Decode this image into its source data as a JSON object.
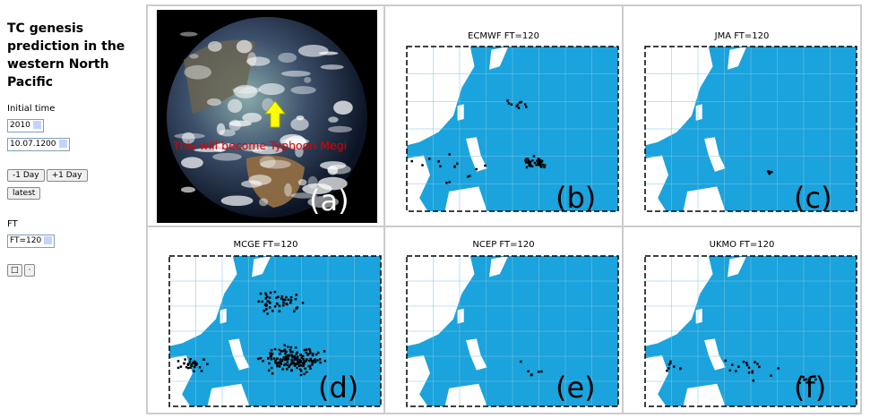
{
  "sidebar": {
    "title": "TC genesis prediction in the western North Pacific",
    "initial_time_label": "Initial time",
    "year": "2010",
    "datetime": "10.07.1200",
    "buttons": [
      "-1 Day",
      "+1 Day",
      "latest"
    ],
    "ft_label": "FT",
    "ft_value": "FT=120"
  },
  "panels": [
    {
      "annotation": "This will become Typhoon Megi",
      "label": "(a)"
    },
    {
      "title": "ECMWF FT=120",
      "label": "(b)"
    },
    {
      "title": "JMA FT=120",
      "label": "(c)"
    },
    {
      "title": "MCGE FT=120",
      "label": "(d)"
    },
    {
      "title": "NCEP FT=120",
      "label": "(e)"
    },
    {
      "title": "UKMO FT=120",
      "label": "(f)"
    }
  ]
}
